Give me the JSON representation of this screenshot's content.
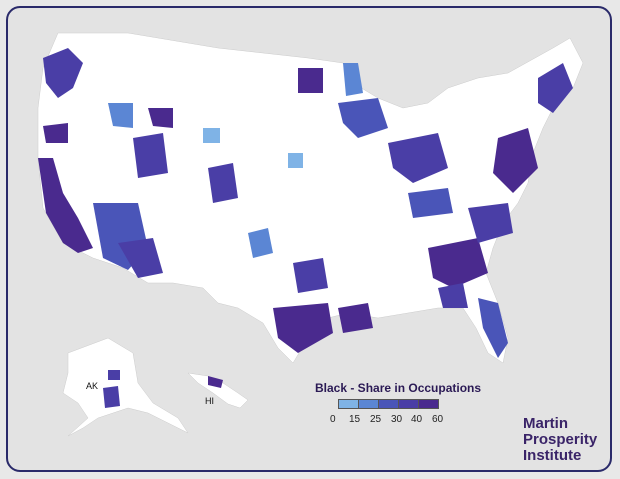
{
  "legend": {
    "title": "Black - Share in Occupations",
    "ticks": [
      "0",
      "15",
      "25",
      "30",
      "40",
      "60"
    ],
    "colors": [
      "#7fb3e6",
      "#5b86d4",
      "#4a55b8",
      "#4a3ea6",
      "#4a2a8e"
    ]
  },
  "labels": {
    "alaska": "AK",
    "hawaii": "HI"
  },
  "brand": {
    "line1": "Martin",
    "line2": "Prosperity",
    "line3": "Institute"
  },
  "colors": {
    "land": "#ffffff",
    "background": "#e3e3e3",
    "border": "#2a2a6a"
  }
}
